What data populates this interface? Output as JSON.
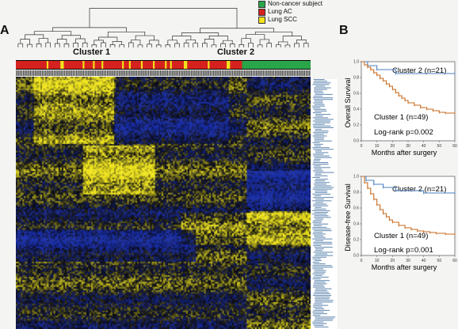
{
  "panels": {
    "a": "A",
    "b": "B"
  },
  "legend": [
    {
      "label": "Non-cancer subject",
      "color": "#2aa64a"
    },
    {
      "label": "Lung AC",
      "color": "#d6221e"
    },
    {
      "label": "Lung SCC",
      "color": "#f2e21a"
    }
  ],
  "heatmap": {
    "cluster1_label": "Cluster 1",
    "cluster2_label": "Cluster 2",
    "colors": {
      "low": "#1a2fa8",
      "mid": "#0b0b12",
      "high": "#f0e520"
    },
    "sample_classes": [
      "AC",
      "AC",
      "AC",
      "AC",
      "AC",
      "AC",
      "AC",
      "AC",
      "AC",
      "AC",
      "AC",
      "AC",
      "AC",
      "AC",
      "AC",
      "AC",
      "AC",
      "AC",
      "SCC",
      "AC",
      "AC",
      "AC",
      "AC",
      "AC",
      "AC",
      "AC",
      "SCC",
      "SCC",
      "AC",
      "AC",
      "AC",
      "AC",
      "AC",
      "AC",
      "AC",
      "AC",
      "AC",
      "AC",
      "AC",
      "SCC",
      "AC",
      "AC",
      "AC",
      "AC",
      "AC",
      "SCC",
      "AC",
      "AC",
      "AC",
      "AC",
      "SCC",
      "AC",
      "AC",
      "AC",
      "AC",
      "AC",
      "AC",
      "AC",
      "AC",
      "AC",
      "AC",
      "AC",
      "SCC",
      "AC",
      "AC",
      "AC",
      "SCC",
      "AC",
      "AC",
      "AC",
      "AC",
      "AC",
      "AC",
      "SCC",
      "AC",
      "AC",
      "AC",
      "AC",
      "AC",
      "AC",
      "SCC",
      "AC",
      "AC",
      "AC",
      "AC",
      "AC",
      "AC",
      "SCC",
      "AC",
      "AC",
      "SCC",
      "AC",
      "AC",
      "AC",
      "AC",
      "AC",
      "AC",
      "AC",
      "SCC",
      "SCC",
      "AC",
      "AC",
      "AC",
      "AC",
      "AC",
      "AC",
      "AC",
      "AC",
      "AC",
      "AC",
      "AC",
      "AC",
      "SCC",
      "AC",
      "AC",
      "AC",
      "AC",
      "AC",
      "AC",
      "AC",
      "AC",
      "AC",
      "AC",
      "SCC",
      "SCC",
      "AC",
      "AC",
      "AC",
      "AC",
      "AC",
      "AC",
      "AC",
      "N",
      "N",
      "N",
      "N",
      "N",
      "N",
      "N",
      "N",
      "N",
      "N",
      "N",
      "N",
      "N",
      "N",
      "N",
      "N",
      "N",
      "N",
      "N",
      "N",
      "N",
      "N",
      "N",
      "N",
      "N",
      "N",
      "N",
      "N",
      "N",
      "N",
      "N",
      "N",
      "N",
      "N",
      "N",
      "N",
      "N",
      "N",
      "N",
      "N"
    ]
  },
  "chart_data": [
    {
      "type": "line",
      "title": "",
      "ylabel": "Overall Survival",
      "xlabel": "Months after surgery",
      "xlim": [
        0,
        60
      ],
      "ylim": [
        0,
        1.0
      ],
      "xticks": [
        0,
        10,
        20,
        30,
        40,
        50,
        60
      ],
      "yticks": [
        0,
        0.2,
        0.4,
        0.6,
        0.8,
        1.0
      ],
      "series": [
        {
          "name": "Cluster 2 (n=21)",
          "color": "#4a7fc1",
          "x": [
            0,
            4,
            10,
            22,
            60
          ],
          "y": [
            1.0,
            0.95,
            0.9,
            0.85,
            0.85
          ]
        },
        {
          "name": "Cluster 1 (n=49)",
          "color": "#c86a1e",
          "x": [
            0,
            2,
            4,
            6,
            8,
            10,
            12,
            14,
            16,
            18,
            20,
            22,
            24,
            26,
            28,
            30,
            34,
            38,
            42,
            46,
            50,
            54,
            60
          ],
          "y": [
            1.0,
            0.96,
            0.93,
            0.9,
            0.86,
            0.83,
            0.79,
            0.76,
            0.72,
            0.69,
            0.65,
            0.61,
            0.57,
            0.54,
            0.51,
            0.48,
            0.45,
            0.42,
            0.4,
            0.38,
            0.36,
            0.35,
            0.35
          ]
        }
      ],
      "annotation": "Log-rank p=0.002"
    },
    {
      "type": "line",
      "title": "",
      "ylabel": "Disease-free Survival",
      "xlabel": "Months after surgery",
      "xlim": [
        0,
        60
      ],
      "ylim": [
        0,
        1.0
      ],
      "xticks": [
        0,
        10,
        20,
        30,
        40,
        50,
        60
      ],
      "yticks": [
        0,
        0.2,
        0.4,
        0.6,
        0.8,
        1.0
      ],
      "series": [
        {
          "name": "Cluster 2 (n=21)",
          "color": "#4a7fc1",
          "x": [
            0,
            3,
            8,
            14,
            22,
            40,
            60
          ],
          "y": [
            1.0,
            0.95,
            0.9,
            0.86,
            0.82,
            0.79,
            0.79
          ]
        },
        {
          "name": "Cluster 1 (n=49)",
          "color": "#c86a1e",
          "x": [
            0,
            2,
            4,
            6,
            8,
            10,
            12,
            14,
            16,
            18,
            20,
            24,
            28,
            32,
            36,
            40,
            44,
            48,
            54,
            60
          ],
          "y": [
            1.0,
            0.92,
            0.85,
            0.78,
            0.71,
            0.64,
            0.58,
            0.53,
            0.49,
            0.45,
            0.42,
            0.38,
            0.35,
            0.33,
            0.31,
            0.3,
            0.29,
            0.28,
            0.27,
            0.27
          ]
        }
      ],
      "annotation": "Log-rank p=0.001"
    }
  ]
}
